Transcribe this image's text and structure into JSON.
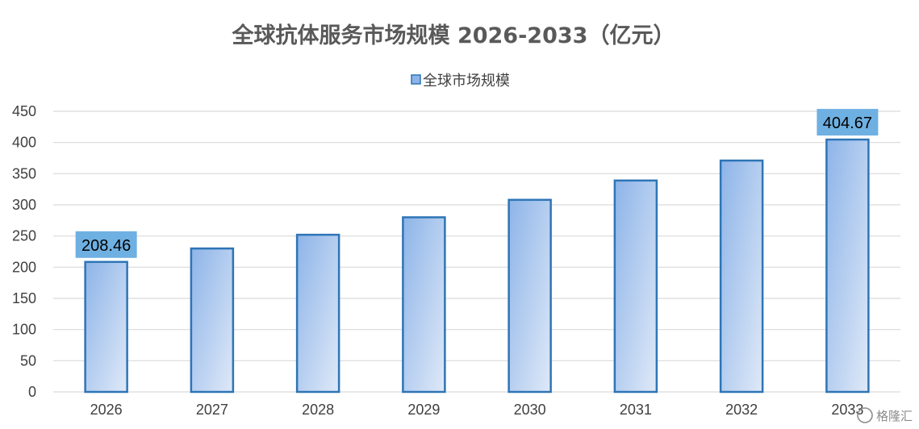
{
  "chart_data": {
    "type": "bar",
    "title": "全球抗体服务市场规模 2026-2033（亿元）",
    "categories": [
      "2026",
      "2027",
      "2028",
      "2029",
      "2030",
      "2031",
      "2032",
      "2033"
    ],
    "series": [
      {
        "name": "全球市场规模",
        "values": [
          208.46,
          230,
          252,
          280,
          308,
          339,
          371,
          404.67
        ]
      }
    ],
    "data_labels": [
      {
        "category": "2026",
        "text": "208.46"
      },
      {
        "category": "2033",
        "text": "404.67"
      }
    ],
    "ylim": [
      0,
      450
    ],
    "yticks": [
      0,
      50,
      100,
      150,
      200,
      250,
      300,
      350,
      400,
      450
    ],
    "grid": true,
    "legend_position": "top-center",
    "colors": {
      "bar_edge": "#2e75b6",
      "bar_fill_start": "#8db4e8",
      "bar_fill_end": "#dfe9f8",
      "label_background": "#6fb0e2",
      "gridline": "#d9d9d9"
    }
  },
  "watermark": "格隆汇"
}
